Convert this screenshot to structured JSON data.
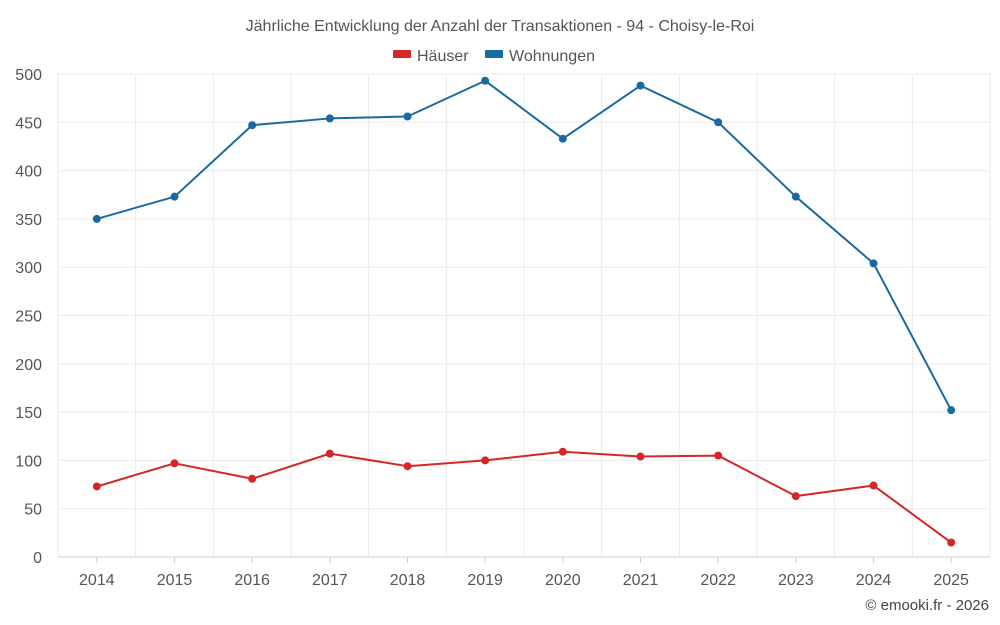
{
  "chart_data": {
    "type": "line",
    "title": "Jährliche Entwicklung der Anzahl der Transaktionen - 94 - Choisy-le-Roi",
    "categories": [
      "2014",
      "2015",
      "2016",
      "2017",
      "2018",
      "2019",
      "2020",
      "2021",
      "2022",
      "2023",
      "2024",
      "2025"
    ],
    "series": [
      {
        "name": "Häuser",
        "color": "#d62728",
        "values": [
          73,
          97,
          81,
          107,
          94,
          100,
          109,
          104,
          105,
          63,
          74,
          15
        ]
      },
      {
        "name": "Wohnungen",
        "color": "#1a6aa0",
        "values": [
          350,
          373,
          447,
          454,
          456,
          493,
          433,
          488,
          450,
          373,
          304,
          152
        ]
      }
    ],
    "yticks": [
      "0",
      "50",
      "100",
      "150",
      "200",
      "250",
      "300",
      "350",
      "400",
      "450",
      "500"
    ],
    "ylim": [
      0,
      500
    ],
    "xlabel": "",
    "ylabel": "",
    "grid": true,
    "legend_position": "top-center"
  },
  "credit": "© emooki.fr - 2026"
}
